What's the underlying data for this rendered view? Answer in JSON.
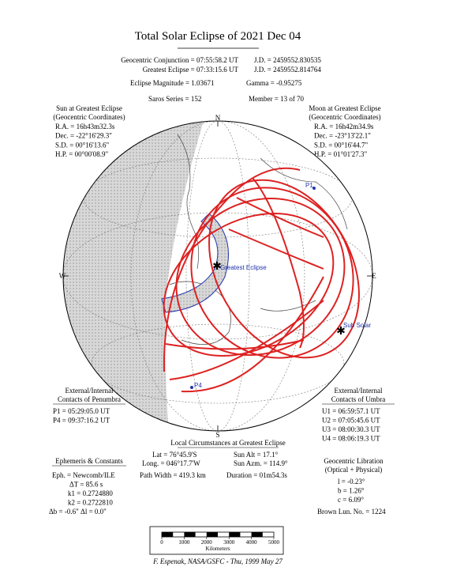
{
  "title": "Total Solar Eclipse of 2021 Dec 04",
  "header": {
    "conjunction": "Geocentric Conjunction =  07:55:58.2 UT",
    "conjunction_jd": "J.D. =  2459552.830535",
    "greatest": "Greatest Eclipse =  07:33:15.6 UT",
    "greatest_jd": "J.D. =  2459552.814764",
    "magnitude": "Eclipse Magnitude =  1.03671",
    "gamma": "Gamma = -0.95275",
    "saros": "Saros Series = 152",
    "member": "Member =  13 of 70"
  },
  "sun": {
    "title": [
      "Sun at Greatest Eclipse",
      "(Geocentric Coordinates)"
    ],
    "rows": [
      "R.A. =  16h43m32.3s",
      "Dec. = -22°16'29.3\"",
      "S.D. =  00°16'13.6\"",
      "H.P. =  00°00'08.9\""
    ]
  },
  "moon": {
    "title": [
      "Moon at Greatest Eclipse",
      "(Geocentric Coordinates)"
    ],
    "rows": [
      "R.A. =  16h42m34.9s",
      "Dec. = -23°13'22.1\"",
      "S.D. =  00°16'44.7\"",
      "H.P. =  01°01'27.3\""
    ]
  },
  "compass": {
    "n": "N",
    "s": "S",
    "e": "E",
    "w": "W"
  },
  "map_labels": {
    "p1": "P1",
    "p4": "P4",
    "greatest": "Greatest Eclipse",
    "sub_solar": "Sub Solar"
  },
  "penumbra": {
    "title": [
      "External/Internal",
      "Contacts of Penumbra"
    ],
    "rows": [
      "P1 = 05:29:05.0 UT",
      "P4 = 09:37:16.2 UT"
    ]
  },
  "umbra": {
    "title": [
      "External/Internal",
      "Contacts of Umbra"
    ],
    "rows": [
      "U1 = 06:59:57.1 UT",
      "U2 = 07:05:45.6 UT",
      "U3 = 08:00:30.3 UT",
      "U4 = 08:06:19.3 UT"
    ]
  },
  "local": {
    "title": "Local Circumstances at Greatest Eclipse",
    "lat": "Lat =  76°45.9'S",
    "sun_alt": "Sun Alt =   17.1°",
    "long": "Long. = 046°17.7'W",
    "sun_azm": "Sun Azm. = 114.9°",
    "path_width": "Path Width = 419.3 km",
    "duration": "Duration =  01m54.3s"
  },
  "ephemeris": {
    "title": "Ephemeris & Constants",
    "rows": [
      "Eph. = Newcomb/ILE",
      "ΔT =     85.6 s",
      "k1 = 0.2724880",
      "k2 = 0.2722810",
      "Δb =  -0.6\"    Δl =   0.0\""
    ]
  },
  "libration": {
    "title": [
      "Geocentric Libration",
      "(Optical + Physical)"
    ],
    "rows": [
      "l =  -0.23°",
      "b =   1.26°",
      "c =   6.09°"
    ],
    "brown": "Brown Lun. No. = 1224"
  },
  "scale": {
    "ticks": [
      "0",
      "1000",
      "2000",
      "3000",
      "4000",
      "5000"
    ],
    "unit": "Kilometers"
  },
  "credit": "F. Espenak, NASA/GSFC - Thu, 1999 May 27"
}
